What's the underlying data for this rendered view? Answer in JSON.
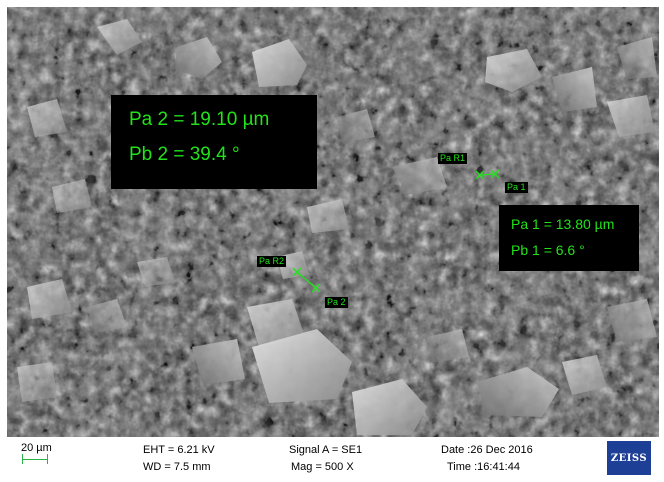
{
  "measurements": {
    "pa2_text": "Pa 2 = 19.10 µm",
    "pb2_text": "Pb 2 =  39.4 °",
    "pa1_text": "Pa 1 = 13.80 µm",
    "pb1_text": "Pb 1 =   6.6 °"
  },
  "markers": {
    "pa_r1": "Pa R1",
    "pa_1": "Pa 1",
    "pa_r2": "Pa R2",
    "pa_2": "Pa 2"
  },
  "data_bar": {
    "scale_label": "20 µm",
    "eht": "EHT =  6.21 kV",
    "wd": "WD =  7.5 mm",
    "signal": "Signal A = SE1",
    "mag": "Mag =    500 X",
    "date": "Date :26 Dec 2016",
    "time": "Time :16:41:44",
    "logo_text": "ZEISS"
  },
  "colors": {
    "overlay_text": "#22e31a",
    "logo_bg": "#1e3f96"
  }
}
